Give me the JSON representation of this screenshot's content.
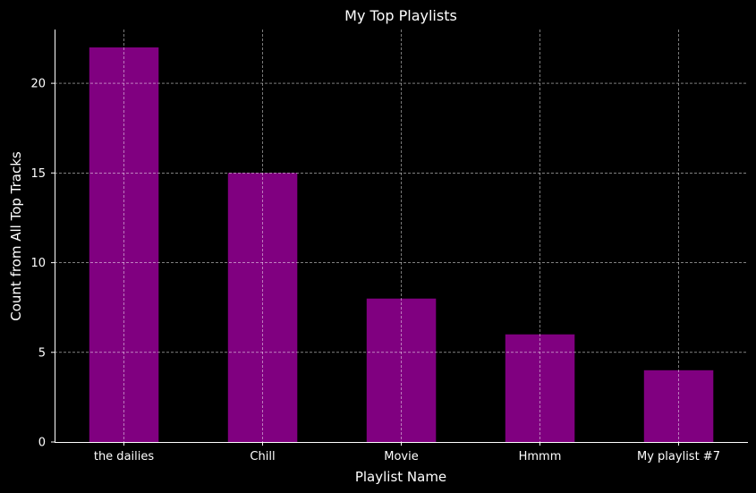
{
  "chart_data": {
    "type": "bar",
    "title": "My Top Playlists",
    "xlabel": "Playlist Name",
    "ylabel": "Count from All Top Tracks",
    "categories": [
      "the dailies",
      "Chill",
      "Movie",
      "Hmmm",
      "My playlist #7"
    ],
    "values": [
      22,
      15,
      8,
      6,
      4
    ],
    "ylim": [
      0,
      23
    ],
    "yticks": [
      0,
      5,
      10,
      15,
      20
    ],
    "grid": true,
    "colors": {
      "bar": "#800080",
      "background": "#000000",
      "text": "#ffffff",
      "grid": "#ffffff"
    }
  }
}
